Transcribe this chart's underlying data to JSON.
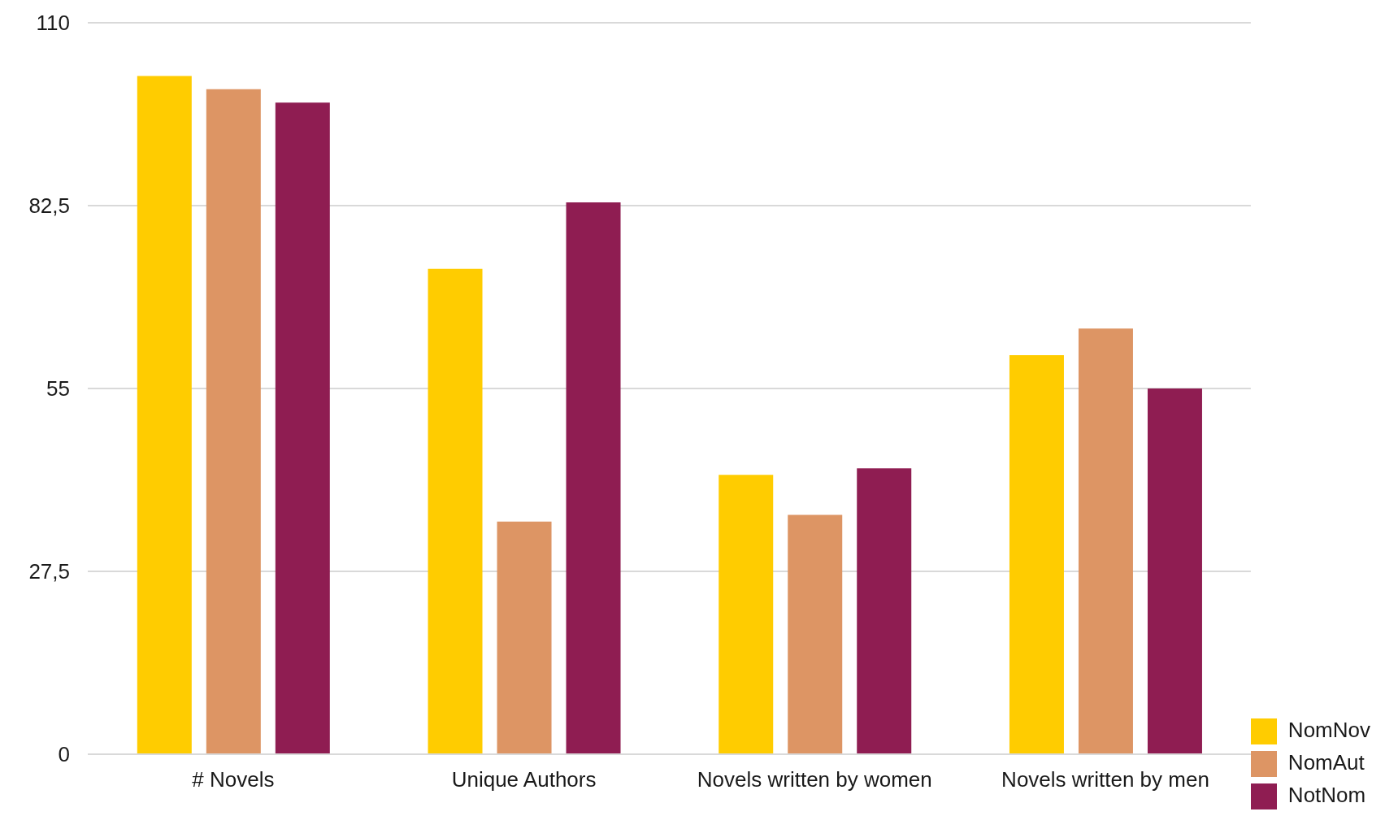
{
  "chart_data": {
    "type": "bar",
    "categories": [
      "# Novels",
      "Unique Authors",
      "Novels written by women",
      "Novels written by men"
    ],
    "series": [
      {
        "name": "NomNov",
        "color": "#ffcc00",
        "values": [
          102,
          73,
          42,
          60
        ]
      },
      {
        "name": "NomAut",
        "color": "#dd9564",
        "values": [
          100,
          35,
          36,
          64
        ]
      },
      {
        "name": "NotNom",
        "color": "#8f1d52",
        "values": [
          98,
          83,
          43,
          55
        ]
      }
    ],
    "ylim": [
      0,
      110
    ],
    "yticks": [
      0,
      {
        "value": 27.5,
        "label": "27,5"
      },
      55,
      {
        "value": 82.5,
        "label": "82,5"
      },
      110
    ],
    "grid": "y",
    "legend": "bottom right"
  }
}
